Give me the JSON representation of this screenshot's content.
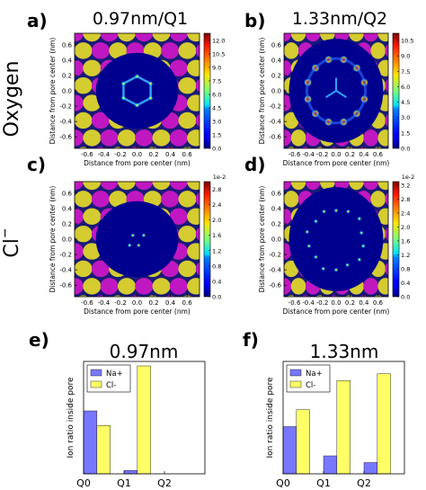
{
  "row_labels": {
    "oxygen": "Oxygen",
    "chloride": "Cl",
    "chloride_sup": "−"
  },
  "map_axes": {
    "xlabel": "Distance from pore center (nm)",
    "ylabel": "Distance from pore center (nm)",
    "xticks": [
      "-0.6",
      "-0.4",
      "-0.2",
      "0.0",
      "0.2",
      "0.4",
      "0.6"
    ],
    "yticks": [
      "0.6",
      "0.4",
      "0.2",
      "0.0",
      "-0.2",
      "-0.4",
      "-0.6"
    ],
    "xlim": [
      -0.75,
      0.75
    ],
    "ylim": [
      -0.75,
      0.75
    ]
  },
  "panels": [
    {
      "letter": "a)",
      "title": "0.97nm/Q1",
      "pore": 0.97,
      "density": "oxygen",
      "cbar_ticks": [
        "12.0",
        "10.5",
        "9.0",
        "7.5",
        "6.0",
        "4.5",
        "3.0",
        "1.5",
        "0.0"
      ],
      "cbar_range": [
        0,
        12.8
      ],
      "cbar_exp": ""
    },
    {
      "letter": "b)",
      "title": "1.33nm/Q2",
      "pore": 1.33,
      "density": "oxygen",
      "cbar_ticks": [
        "10.5",
        "9.0",
        "7.5",
        "6.0",
        "4.5",
        "3.0",
        "1.5",
        "0.0"
      ],
      "cbar_range": [
        0,
        11.2
      ],
      "cbar_exp": ""
    },
    {
      "letter": "c)",
      "title": "",
      "pore": 0.97,
      "density": "chloride",
      "cbar_ticks": [
        "2.8",
        "2.4",
        "2.0",
        "1.6",
        "1.2",
        "0.8",
        "0.4",
        "0.0"
      ],
      "cbar_range": [
        0,
        3.0
      ],
      "cbar_exp": "1e-2"
    },
    {
      "letter": "d)",
      "title": "",
      "pore": 1.33,
      "density": "chloride",
      "cbar_ticks": [
        "3.2",
        "2.8",
        "2.4",
        "2.0",
        "1.6",
        "1.2",
        "0.8",
        "0.4",
        "0.0"
      ],
      "cbar_range": [
        0,
        3.3
      ],
      "cbar_exp": "1e-2"
    }
  ],
  "colors": {
    "grid_dark": "#1a1a78",
    "grid_magenta": "#c018c0",
    "grid_yellow": "#d4cc30",
    "pore_background": "#00008f",
    "na_bar": "#7878ff",
    "cl_bar": "#ffff66"
  },
  "chart_data": [
    {
      "type": "bar",
      "letter": "e)",
      "title": "0.97nm",
      "categories": [
        "Q0",
        "Q1",
        "Q2"
      ],
      "series": [
        {
          "name": "Na+",
          "values": [
            0.56,
            0.03,
            0.0
          ]
        },
        {
          "name": "Cl-",
          "values": [
            0.43,
            0.96,
            0.0
          ]
        }
      ],
      "ylabel": "Ion ratio inside pore",
      "xlabel": "",
      "ylim": [
        0,
        1
      ],
      "legend": "top-left",
      "grid": false
    },
    {
      "type": "bar",
      "letter": "f)",
      "title": "1.33nm",
      "categories": [
        "Q0",
        "Q1",
        "Q2"
      ],
      "series": [
        {
          "name": "Na+",
          "values": [
            0.42,
            0.16,
            0.1
          ]
        },
        {
          "name": "Cl-",
          "values": [
            0.57,
            0.83,
            0.89
          ]
        }
      ],
      "ylabel": "Ion ratio inside pore",
      "xlabel": "",
      "ylim": [
        0,
        1
      ],
      "legend": "top-left",
      "grid": false
    }
  ]
}
